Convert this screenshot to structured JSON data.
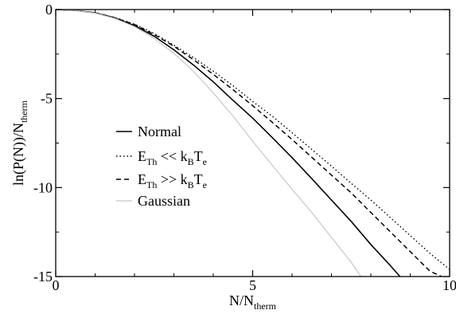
{
  "chart_data": {
    "type": "line",
    "xlabel": {
      "main": "N/N",
      "sub": "therm"
    },
    "ylabel": {
      "main": "ln(P(N))/N",
      "sub": "therm"
    },
    "xlim": [
      0,
      10
    ],
    "ylim": [
      -15,
      0
    ],
    "x_ticks": [
      0,
      5,
      10
    ],
    "x_tick_labels": [
      "0",
      "5",
      "10"
    ],
    "y_ticks": [
      0,
      -5,
      -10,
      -15
    ],
    "y_tick_labels": [
      "0",
      "-5",
      "-10",
      "-15"
    ],
    "grid": false,
    "legend_position": "center-left",
    "legend": [
      {
        "key": "normal",
        "parts": [
          [
            "Normal",
            ""
          ]
        ]
      },
      {
        "key": "eth_ll",
        "parts": [
          [
            "E",
            ""
          ],
          [
            "Th",
            "sub"
          ],
          [
            " << k",
            ""
          ],
          [
            "B",
            "sub"
          ],
          [
            "T",
            ""
          ],
          [
            "e",
            "sub"
          ]
        ]
      },
      {
        "key": "eth_gg",
        "parts": [
          [
            "E",
            ""
          ],
          [
            "Th",
            "sub"
          ],
          [
            " >> k",
            ""
          ],
          [
            "B",
            "sub"
          ],
          [
            "T",
            ""
          ],
          [
            "e",
            "sub"
          ]
        ]
      },
      {
        "key": "gaussian",
        "parts": [
          [
            "Gaussian",
            ""
          ]
        ]
      }
    ],
    "series": [
      {
        "key": "normal",
        "color": "#000000",
        "style": "solid",
        "x": [
          0,
          0.5,
          1,
          1.5,
          2,
          2.5,
          3,
          3.5,
          4,
          4.5,
          5,
          5.5,
          6,
          6.5,
          7,
          7.5,
          8,
          8.5,
          8.74
        ],
        "y": [
          0,
          -0.05,
          -0.19,
          -0.48,
          -0.9,
          -1.5,
          -2.26,
          -3.12,
          -4.06,
          -5.1,
          -6.1,
          -7.2,
          -8.32,
          -9.5,
          -10.7,
          -11.9,
          -13.2,
          -14.4,
          -15
        ]
      },
      {
        "key": "eth_ll",
        "color": "#000000",
        "style": "dotted",
        "x": [
          0,
          0.5,
          1,
          1.5,
          2,
          2.5,
          3,
          3.5,
          4,
          4.5,
          5,
          5.5,
          6,
          6.5,
          7,
          7.5,
          8,
          8.5,
          9,
          9.5,
          10
        ],
        "y": [
          0,
          -0.05,
          -0.18,
          -0.45,
          -0.82,
          -1.35,
          -2.0,
          -2.7,
          -3.46,
          -4.28,
          -5.16,
          -6.0,
          -6.92,
          -7.86,
          -8.8,
          -9.76,
          -10.7,
          -11.7,
          -12.7,
          -13.7,
          -14.6
        ]
      },
      {
        "key": "eth_gg",
        "color": "#000000",
        "style": "dashed",
        "x": [
          0,
          0.5,
          1,
          1.5,
          2,
          2.5,
          3,
          3.5,
          4,
          4.5,
          5,
          5.5,
          6,
          6.5,
          7,
          7.5,
          8,
          8.5,
          9,
          9.5,
          9.8
        ],
        "y": [
          0,
          -0.05,
          -0.18,
          -0.46,
          -0.84,
          -1.4,
          -2.06,
          -2.82,
          -3.64,
          -4.5,
          -5.4,
          -6.34,
          -7.3,
          -8.3,
          -9.3,
          -10.3,
          -11.4,
          -12.5,
          -13.6,
          -14.7,
          -15
        ]
      },
      {
        "key": "gaussian",
        "color": "#c8c8c8",
        "style": "solid",
        "x": [
          0,
          0.5,
          1,
          1.5,
          2,
          2.5,
          3,
          3.5,
          4,
          4.5,
          5,
          5.5,
          6,
          6.5,
          7,
          7.5,
          7.75
        ],
        "y": [
          0,
          -0.05,
          -0.2,
          -0.5,
          -0.96,
          -1.62,
          -2.46,
          -3.48,
          -4.68,
          -5.98,
          -7.4,
          -8.76,
          -10.1,
          -11.4,
          -12.8,
          -14.2,
          -15
        ]
      }
    ]
  }
}
